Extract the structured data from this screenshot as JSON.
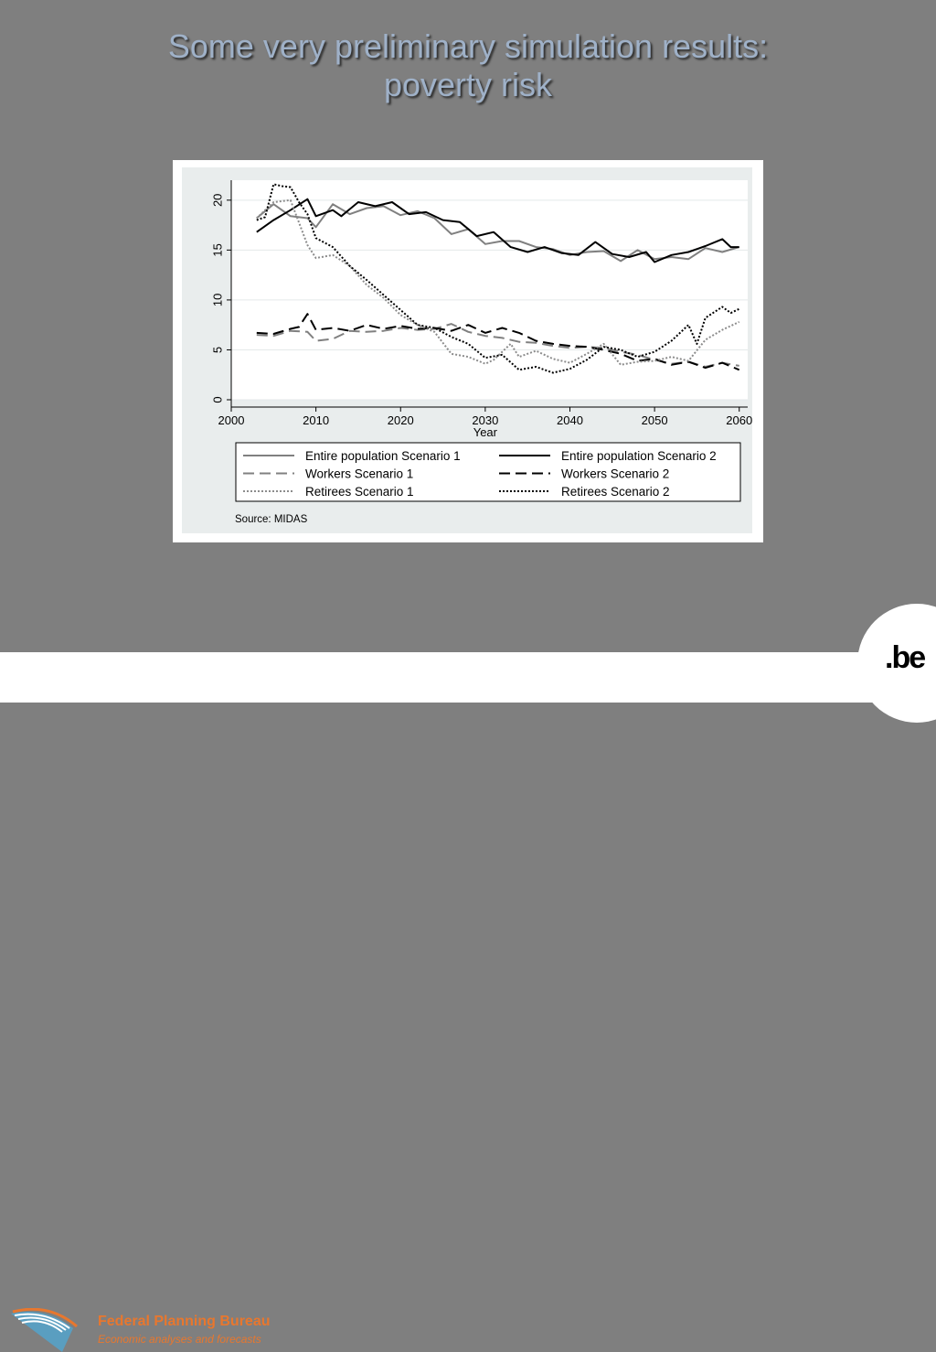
{
  "slide": {
    "title_line1": "Some very preliminary simulation results:",
    "title_line2": "poverty risk"
  },
  "footer": {
    "org_name": "Federal Planning Bureau",
    "org_tagline": "Economic analyses and forecasts",
    "be_logo_text": ".be"
  },
  "chart_data": {
    "type": "line",
    "xlabel": "Year",
    "ylabel": "",
    "xlim": [
      2000,
      2061
    ],
    "ylim": [
      0,
      22
    ],
    "xticks": [
      2000,
      2010,
      2020,
      2030,
      2040,
      2050,
      2060
    ],
    "yticks": [
      0,
      5,
      10,
      15,
      20
    ],
    "grid": "horizontal",
    "legend_position": "bottom",
    "source": "Source: MIDAS",
    "series": [
      {
        "name": "Entire population Scenario 1",
        "color": "#808080",
        "dash": "solid",
        "x": [
          2003,
          2005,
          2007,
          2009,
          2010,
          2012,
          2014,
          2016,
          2018,
          2020,
          2022,
          2024,
          2026,
          2028,
          2030,
          2032,
          2034,
          2036,
          2038,
          2040,
          2042,
          2044,
          2046,
          2048,
          2050,
          2052,
          2054,
          2056,
          2058,
          2060
        ],
        "y": [
          18.2,
          19.6,
          18.4,
          18.2,
          17.3,
          19.6,
          18.6,
          19.2,
          19.4,
          18.5,
          18.9,
          18.2,
          16.6,
          17.1,
          15.6,
          15.9,
          15.9,
          15.3,
          15.1,
          14.5,
          14.8,
          14.9,
          13.9,
          15.0,
          14.1,
          14.3,
          14.1,
          15.2,
          14.8,
          15.3
        ]
      },
      {
        "name": "Entire population Scenario 2",
        "color": "#000000",
        "dash": "solid",
        "x": [
          2003,
          2005,
          2007,
          2009,
          2010,
          2012,
          2013,
          2015,
          2017,
          2019,
          2021,
          2023,
          2025,
          2027,
          2029,
          2031,
          2033,
          2035,
          2037,
          2039,
          2041,
          2043,
          2045,
          2047,
          2049,
          2050,
          2052,
          2054,
          2056,
          2058,
          2059,
          2060
        ],
        "y": [
          16.8,
          18.0,
          19.0,
          20.1,
          18.4,
          19.0,
          18.4,
          19.8,
          19.4,
          19.8,
          18.6,
          18.8,
          18.0,
          17.8,
          16.4,
          16.8,
          15.3,
          14.8,
          15.3,
          14.7,
          14.5,
          15.8,
          14.6,
          14.3,
          14.8,
          13.8,
          14.5,
          14.8,
          15.4,
          16.1,
          15.3,
          15.3
        ]
      },
      {
        "name": "Workers Scenario 1",
        "color": "#808080",
        "dash": "12,6",
        "x": [
          2003,
          2005,
          2007,
          2009,
          2010,
          2012,
          2014,
          2016,
          2018,
          2020,
          2022,
          2024,
          2026,
          2028,
          2030,
          2032,
          2034,
          2036,
          2038,
          2040,
          2042,
          2044,
          2046,
          2048,
          2050,
          2052,
          2054,
          2056,
          2058,
          2060
        ],
        "y": [
          6.5,
          6.4,
          6.9,
          6.8,
          5.9,
          6.1,
          6.9,
          6.8,
          6.9,
          7.2,
          7.0,
          7.1,
          7.6,
          6.8,
          6.4,
          6.2,
          5.8,
          5.7,
          5.4,
          5.2,
          5.3,
          5.2,
          4.8,
          4.5,
          4.0,
          3.6,
          3.8,
          3.3,
          3.7,
          3.4
        ]
      },
      {
        "name": "Workers Scenario 2",
        "color": "#000000",
        "dash": "12,6",
        "x": [
          2003,
          2005,
          2007,
          2008,
          2009,
          2010,
          2012,
          2014,
          2016,
          2018,
          2020,
          2022,
          2024,
          2026,
          2028,
          2030,
          2032,
          2034,
          2036,
          2038,
          2040,
          2042,
          2044,
          2046,
          2048,
          2050,
          2052,
          2054,
          2056,
          2058,
          2060
        ],
        "y": [
          6.7,
          6.6,
          7.1,
          7.3,
          8.6,
          7.0,
          7.2,
          6.9,
          7.5,
          7.1,
          7.4,
          7.1,
          7.2,
          6.9,
          7.5,
          6.7,
          7.2,
          6.7,
          5.9,
          5.6,
          5.4,
          5.3,
          5.0,
          4.6,
          3.9,
          4.1,
          3.5,
          3.8,
          3.2,
          3.7,
          3.0
        ]
      },
      {
        "name": "Retirees Scenario 1",
        "color": "#8c8c8c",
        "dash": "2,2",
        "x": [
          2003,
          2005,
          2007,
          2009,
          2010,
          2012,
          2014,
          2016,
          2018,
          2020,
          2022,
          2024,
          2026,
          2028,
          2030,
          2031,
          2032,
          2033,
          2034,
          2036,
          2038,
          2040,
          2042,
          2044,
          2046,
          2048,
          2050,
          2052,
          2054,
          2056,
          2058,
          2060
        ],
        "y": [
          18.2,
          19.8,
          20.0,
          15.5,
          14.2,
          14.5,
          13.4,
          11.5,
          10.2,
          8.5,
          7.5,
          6.8,
          4.6,
          4.3,
          3.6,
          4.0,
          4.8,
          5.6,
          4.3,
          4.9,
          4.1,
          3.7,
          4.6,
          5.6,
          3.5,
          3.8,
          3.9,
          4.3,
          3.9,
          6.0,
          7.0,
          7.8
        ]
      },
      {
        "name": "Retirees Scenario 2",
        "color": "#000000",
        "dash": "2,2",
        "x": [
          2003,
          2004,
          2005,
          2006,
          2007,
          2008,
          2009,
          2010,
          2012,
          2014,
          2016,
          2018,
          2020,
          2022,
          2024,
          2026,
          2028,
          2030,
          2032,
          2034,
          2036,
          2038,
          2040,
          2042,
          2044,
          2046,
          2048,
          2050,
          2052,
          2054,
          2055,
          2056,
          2058,
          2059,
          2060
        ],
        "y": [
          18.0,
          18.3,
          21.6,
          21.4,
          21.3,
          19.8,
          18.6,
          16.2,
          15.3,
          13.4,
          12.0,
          10.5,
          9.0,
          7.5,
          7.2,
          6.3,
          5.6,
          4.2,
          4.5,
          3.0,
          3.3,
          2.7,
          3.1,
          4.0,
          5.3,
          5.0,
          4.3,
          4.8,
          5.9,
          7.5,
          5.6,
          8.2,
          9.3,
          8.7,
          9.1
        ]
      }
    ]
  }
}
